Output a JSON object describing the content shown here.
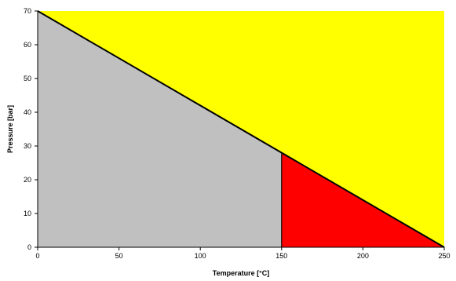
{
  "chart_data": {
    "type": "area",
    "title": "",
    "xlabel": "Temperature [°C]",
    "ylabel": "Pressure [bar]",
    "xlim": [
      0,
      250
    ],
    "ylim": [
      0,
      70
    ],
    "xticks": [
      0,
      50,
      100,
      150,
      200,
      250
    ],
    "yticks": [
      0,
      10,
      20,
      30,
      40,
      50,
      60,
      70
    ],
    "grid": false,
    "legend": "none",
    "boundary_line": {
      "x": [
        0,
        250
      ],
      "y": [
        70,
        0
      ],
      "color": "#000000"
    },
    "regions": [
      {
        "id": "above-line",
        "color": "#ffff00",
        "polygon_x": [
          0,
          250,
          250
        ],
        "polygon_y": [
          70,
          70,
          0
        ]
      },
      {
        "id": "below-line-low-temp",
        "color": "#c0c0c0",
        "polygon_x": [
          0,
          150,
          150,
          0
        ],
        "polygon_y": [
          70,
          28,
          0,
          0
        ]
      },
      {
        "id": "below-line-high-temp",
        "color": "#ff0000",
        "polygon_x": [
          150,
          250,
          150
        ],
        "polygon_y": [
          28,
          0,
          0
        ]
      }
    ],
    "vertical_divider": {
      "x": 150,
      "y": [
        0,
        28
      ],
      "color": "#000000"
    },
    "plot_background": "#ffffff",
    "axis_color": "#000000"
  }
}
